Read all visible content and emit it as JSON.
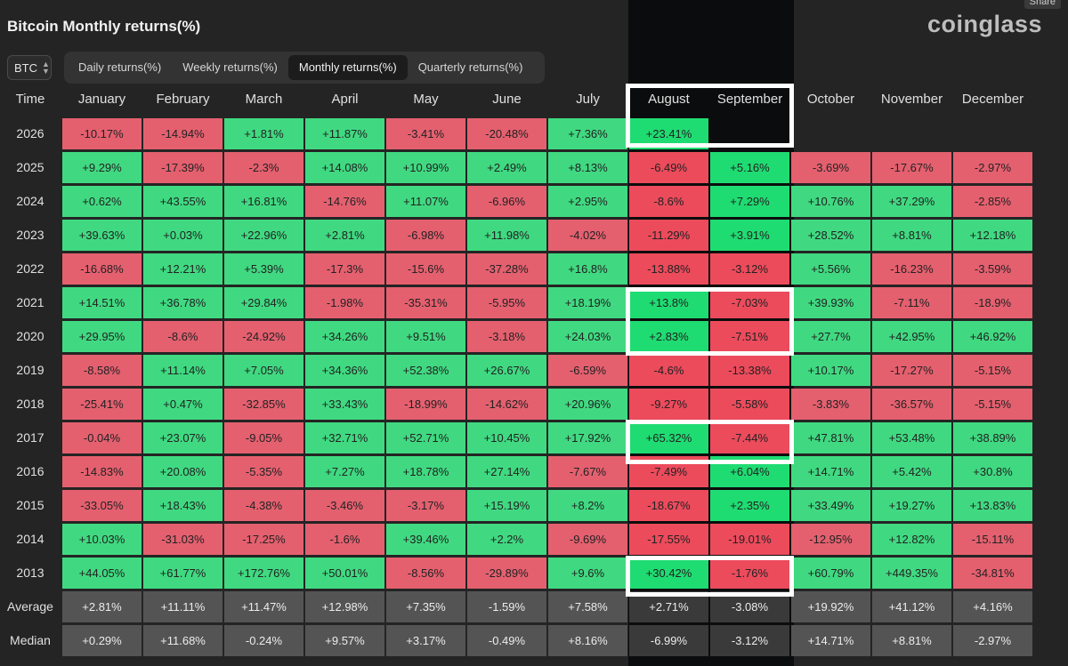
{
  "header": {
    "title": "Bitcoin Monthly returns(%)",
    "brand": "coinglass",
    "share_label": "Share"
  },
  "asset_select": {
    "value": "BTC"
  },
  "tabs": [
    {
      "label": "Daily returns(%)",
      "active": false
    },
    {
      "label": "Weekly returns(%)",
      "active": false
    },
    {
      "label": "Monthly returns(%)",
      "active": true
    },
    {
      "label": "Quarterly returns(%)",
      "active": false
    }
  ],
  "table": {
    "time_header": "Time",
    "months": [
      "January",
      "February",
      "March",
      "April",
      "May",
      "June",
      "July",
      "August",
      "September",
      "October",
      "November",
      "December"
    ],
    "rows": [
      {
        "year": "2026",
        "values": [
          "-10.17%",
          "-14.94%",
          "+1.81%",
          "+11.87%",
          "-3.41%",
          "-20.48%",
          "+7.36%",
          "+23.41%",
          "",
          "",
          "",
          ""
        ]
      },
      {
        "year": "2025",
        "values": [
          "+9.29%",
          "-17.39%",
          "-2.3%",
          "+14.08%",
          "+10.99%",
          "+2.49%",
          "+8.13%",
          "-6.49%",
          "+5.16%",
          "-3.69%",
          "-17.67%",
          "-2.97%"
        ]
      },
      {
        "year": "2024",
        "values": [
          "+0.62%",
          "+43.55%",
          "+16.81%",
          "-14.76%",
          "+11.07%",
          "-6.96%",
          "+2.95%",
          "-8.6%",
          "+7.29%",
          "+10.76%",
          "+37.29%",
          "-2.85%"
        ]
      },
      {
        "year": "2023",
        "values": [
          "+39.63%",
          "+0.03%",
          "+22.96%",
          "+2.81%",
          "-6.98%",
          "+11.98%",
          "-4.02%",
          "-11.29%",
          "+3.91%",
          "+28.52%",
          "+8.81%",
          "+12.18%"
        ]
      },
      {
        "year": "2022",
        "values": [
          "-16.68%",
          "+12.21%",
          "+5.39%",
          "-17.3%",
          "-15.6%",
          "-37.28%",
          "+16.8%",
          "-13.88%",
          "-3.12%",
          "+5.56%",
          "-16.23%",
          "-3.59%"
        ]
      },
      {
        "year": "2021",
        "values": [
          "+14.51%",
          "+36.78%",
          "+29.84%",
          "-1.98%",
          "-35.31%",
          "-5.95%",
          "+18.19%",
          "+13.8%",
          "-7.03%",
          "+39.93%",
          "-7.11%",
          "-18.9%"
        ]
      },
      {
        "year": "2020",
        "values": [
          "+29.95%",
          "-8.6%",
          "-24.92%",
          "+34.26%",
          "+9.51%",
          "-3.18%",
          "+24.03%",
          "+2.83%",
          "-7.51%",
          "+27.7%",
          "+42.95%",
          "+46.92%"
        ]
      },
      {
        "year": "2019",
        "values": [
          "-8.58%",
          "+11.14%",
          "+7.05%",
          "+34.36%",
          "+52.38%",
          "+26.67%",
          "-6.59%",
          "-4.6%",
          "-13.38%",
          "+10.17%",
          "-17.27%",
          "-5.15%"
        ]
      },
      {
        "year": "2018",
        "values": [
          "-25.41%",
          "+0.47%",
          "-32.85%",
          "+33.43%",
          "-18.99%",
          "-14.62%",
          "+20.96%",
          "-9.27%",
          "-5.58%",
          "-3.83%",
          "-36.57%",
          "-5.15%"
        ]
      },
      {
        "year": "2017",
        "values": [
          "-0.04%",
          "+23.07%",
          "-9.05%",
          "+32.71%",
          "+52.71%",
          "+10.45%",
          "+17.92%",
          "+65.32%",
          "-7.44%",
          "+47.81%",
          "+53.48%",
          "+38.89%"
        ]
      },
      {
        "year": "2016",
        "values": [
          "-14.83%",
          "+20.08%",
          "-5.35%",
          "+7.27%",
          "+18.78%",
          "+27.14%",
          "-7.67%",
          "-7.49%",
          "+6.04%",
          "+14.71%",
          "+5.42%",
          "+30.8%"
        ]
      },
      {
        "year": "2015",
        "values": [
          "-33.05%",
          "+18.43%",
          "-4.38%",
          "-3.46%",
          "-3.17%",
          "+15.19%",
          "+8.2%",
          "-18.67%",
          "+2.35%",
          "+33.49%",
          "+19.27%",
          "+13.83%"
        ]
      },
      {
        "year": "2014",
        "values": [
          "+10.03%",
          "-31.03%",
          "-17.25%",
          "-1.6%",
          "+39.46%",
          "+2.2%",
          "-9.69%",
          "-17.55%",
          "-19.01%",
          "-12.95%",
          "+12.82%",
          "-15.11%"
        ]
      },
      {
        "year": "2013",
        "values": [
          "+44.05%",
          "+61.77%",
          "+172.76%",
          "+50.01%",
          "-8.56%",
          "-29.89%",
          "+9.6%",
          "+30.42%",
          "-1.76%",
          "+60.79%",
          "+449.35%",
          "-34.81%"
        ]
      }
    ],
    "stats": [
      {
        "label": "Average",
        "values": [
          "+2.81%",
          "+11.11%",
          "+11.47%",
          "+12.98%",
          "+7.35%",
          "-1.59%",
          "+7.58%",
          "+2.71%",
          "-3.08%",
          "+19.92%",
          "+41.12%",
          "+4.16%"
        ]
      },
      {
        "label": "Median",
        "values": [
          "+0.29%",
          "+11.68%",
          "-0.24%",
          "+9.57%",
          "+3.17%",
          "-0.49%",
          "+8.16%",
          "-6.99%",
          "-3.12%",
          "+14.71%",
          "+8.81%",
          "-2.97%"
        ]
      }
    ]
  },
  "colors": {
    "positive": "#40d981",
    "negative": "#e4606f",
    "highlight_positive": "#1fdc72",
    "highlight_negative": "#ec4b5c",
    "stat_cell": "#545454",
    "background": "#242424",
    "highlight_column_bg": "#0b0c0d",
    "annotation_box": "#ffffff"
  },
  "annotations": {
    "highlighted_months": [
      "August",
      "September"
    ],
    "boxed_years": [
      "2021",
      "2020",
      "2017",
      "2013"
    ]
  }
}
